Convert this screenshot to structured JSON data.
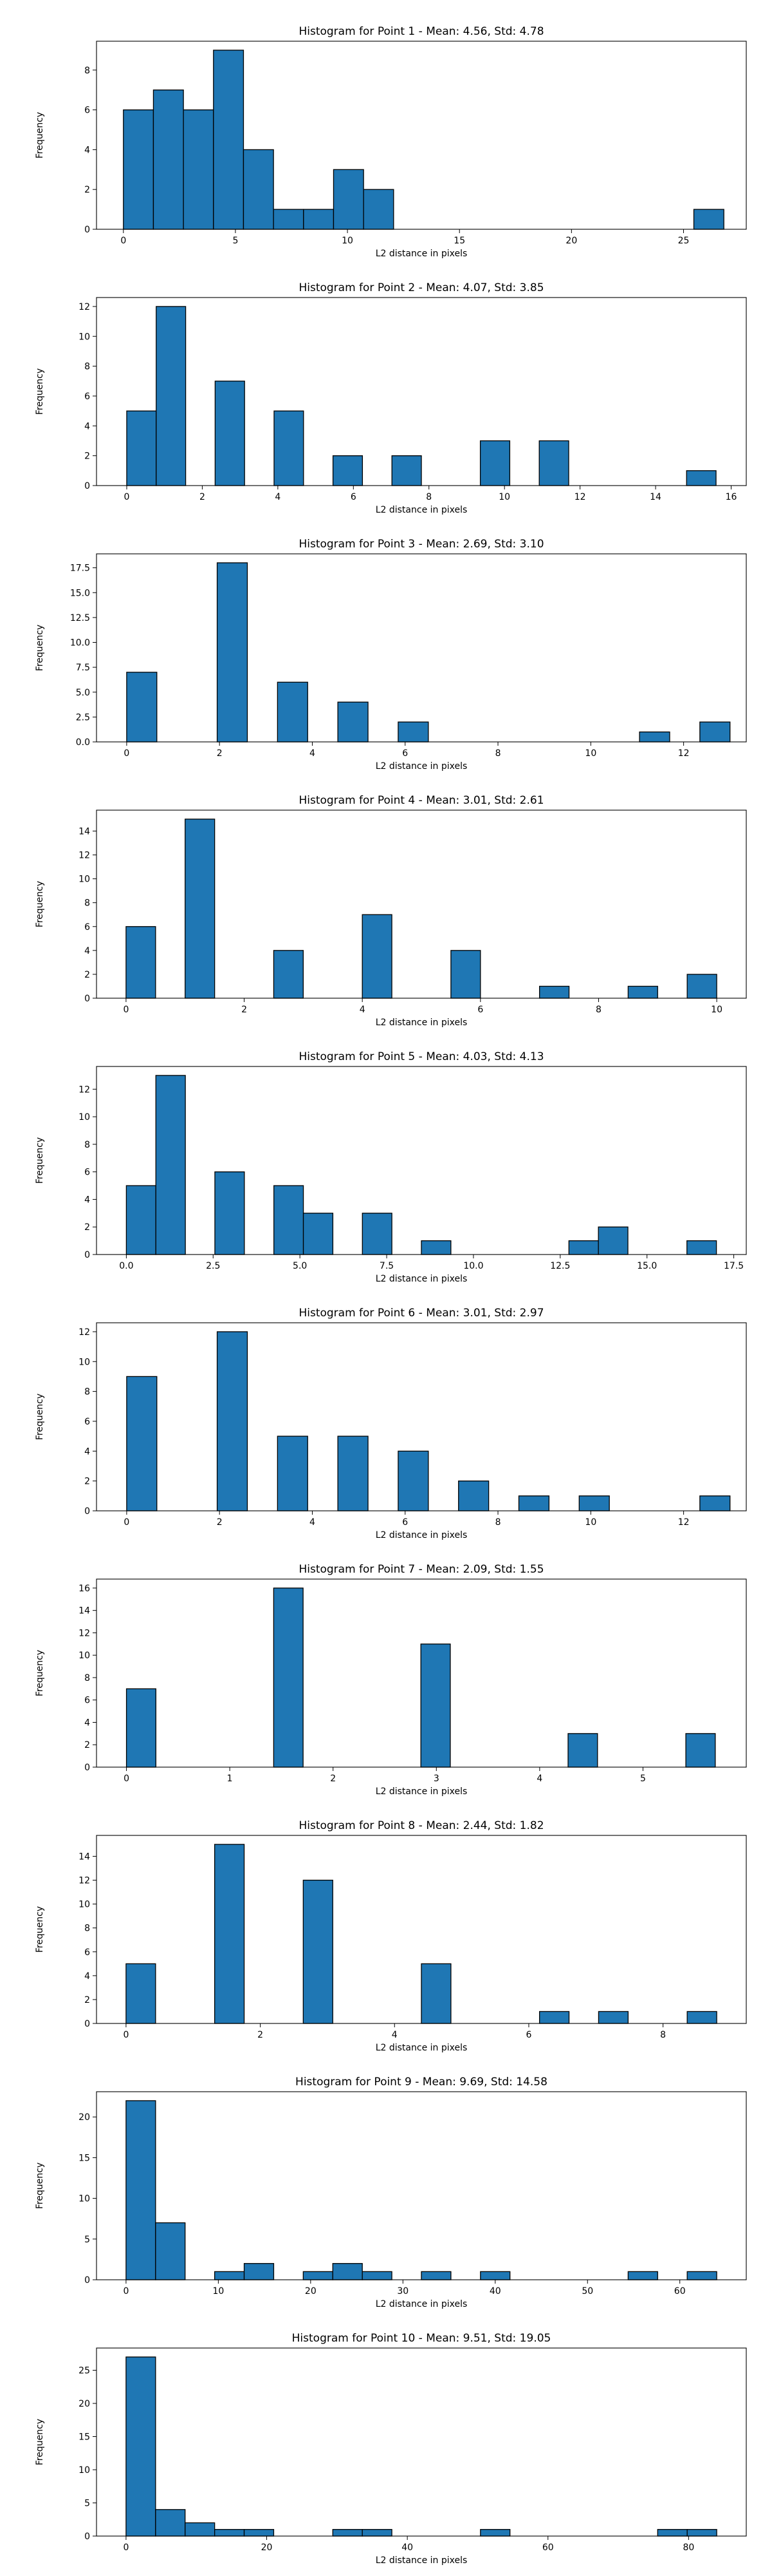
{
  "figure": {
    "bar_color": "#1f77b4",
    "edge_color": "#000000",
    "axes_color": "#000000"
  },
  "chart_data": [
    {
      "type": "bar",
      "title": "Histogram for Point 1 - Mean: 4.56, Std: 4.78",
      "xlabel": "L2 distance in pixels",
      "ylabel": "Frequency",
      "grid": false,
      "xlim": [
        -1.2,
        27.8
      ],
      "ylim": [
        0,
        9.45
      ],
      "xticks": [
        0,
        5,
        10,
        15,
        20,
        25
      ],
      "xtick_labels": [
        "0",
        "5",
        "10",
        "15",
        "20",
        "25"
      ],
      "yticks": [
        0,
        2,
        4,
        6,
        8
      ],
      "ytick_labels": [
        "0",
        "2",
        "4",
        "6",
        "8"
      ],
      "bin_edges": [
        0.0,
        1.34,
        2.68,
        4.02,
        5.36,
        6.7,
        8.04,
        9.38,
        10.72,
        12.06,
        13.4,
        14.74,
        16.08,
        17.42,
        18.76,
        20.1,
        21.44,
        22.78,
        24.12,
        25.46,
        26.8
      ],
      "counts": [
        6,
        7,
        6,
        9,
        4,
        1,
        1,
        3,
        2,
        0,
        0,
        0,
        0,
        0,
        0,
        0,
        0,
        0,
        0,
        1
      ]
    },
    {
      "type": "bar",
      "title": "Histogram for Point 2 - Mean: 4.07, Std: 3.85",
      "xlabel": "L2 distance in pixels",
      "ylabel": "Frequency",
      "grid": false,
      "xlim": [
        -0.8,
        16.4
      ],
      "ylim": [
        0,
        12.6
      ],
      "xticks": [
        0,
        2,
        4,
        6,
        8,
        10,
        12,
        14,
        16
      ],
      "xtick_labels": [
        "0",
        "2",
        "4",
        "6",
        "8",
        "10",
        "12",
        "14",
        "16"
      ],
      "yticks": [
        0,
        2,
        4,
        6,
        8,
        10,
        12
      ],
      "ytick_labels": [
        "0",
        "2",
        "4",
        "6",
        "8",
        "10",
        "12"
      ],
      "bin_edges": [
        0.0,
        0.78,
        1.56,
        2.34,
        3.12,
        3.9,
        4.68,
        5.46,
        6.24,
        7.02,
        7.8,
        8.58,
        9.36,
        10.14,
        10.92,
        11.7,
        12.48,
        13.26,
        14.04,
        14.82,
        15.6
      ],
      "counts": [
        5,
        12,
        0,
        7,
        0,
        5,
        0,
        2,
        0,
        2,
        0,
        0,
        3,
        0,
        3,
        0,
        0,
        0,
        0,
        1
      ]
    },
    {
      "type": "bar",
      "title": "Histogram for Point 3 - Mean: 2.69, Std: 3.10",
      "xlabel": "L2 distance in pixels",
      "ylabel": "Frequency",
      "grid": false,
      "xlim": [
        -0.65,
        13.35
      ],
      "ylim": [
        0,
        18.9
      ],
      "xticks": [
        0,
        2,
        4,
        6,
        8,
        10,
        12
      ],
      "xtick_labels": [
        "0",
        "2",
        "4",
        "6",
        "8",
        "10",
        "12"
      ],
      "yticks": [
        0,
        2.5,
        5,
        7.5,
        10,
        12.5,
        15,
        17.5
      ],
      "ytick_labels": [
        "0.0",
        "2.5",
        "5.0",
        "7.5",
        "10.0",
        "12.5",
        "15.0",
        "17.5"
      ],
      "bin_edges": [
        0.0,
        0.65,
        1.3,
        1.95,
        2.6,
        3.25,
        3.9,
        4.55,
        5.2,
        5.85,
        6.5,
        7.15,
        7.8,
        8.45,
        9.1,
        9.75,
        10.4,
        11.05,
        11.7,
        12.35,
        13.0
      ],
      "counts": [
        7,
        0,
        0,
        18,
        0,
        6,
        0,
        4,
        0,
        2,
        0,
        0,
        0,
        0,
        0,
        0,
        0,
        1,
        0,
        2
      ]
    },
    {
      "type": "bar",
      "title": "Histogram for Point 4 - Mean: 3.01, Std: 2.61",
      "xlabel": "L2 distance in pixels",
      "ylabel": "Frequency",
      "grid": false,
      "xlim": [
        -0.5,
        10.5
      ],
      "ylim": [
        0,
        15.75
      ],
      "xticks": [
        0,
        2,
        4,
        6,
        8,
        10
      ],
      "xtick_labels": [
        "0",
        "2",
        "4",
        "6",
        "8",
        "10"
      ],
      "yticks": [
        0,
        2,
        4,
        6,
        8,
        10,
        12,
        14
      ],
      "ytick_labels": [
        "0",
        "2",
        "4",
        "6",
        "8",
        "10",
        "12",
        "14"
      ],
      "bin_edges": [
        0.0,
        0.5,
        1.0,
        1.5,
        2.0,
        2.5,
        3.0,
        3.5,
        4.0,
        4.5,
        5.0,
        5.5,
        6.0,
        6.5,
        7.0,
        7.5,
        8.0,
        8.5,
        9.0,
        9.5,
        10.0
      ],
      "counts": [
        6,
        0,
        15,
        0,
        0,
        4,
        0,
        0,
        7,
        0,
        0,
        4,
        0,
        0,
        1,
        0,
        0,
        1,
        0,
        2
      ]
    },
    {
      "type": "bar",
      "title": "Histogram for Point 5 - Mean: 4.03, Std: 4.13",
      "xlabel": "L2 distance in pixels",
      "ylabel": "Frequency",
      "grid": false,
      "xlim": [
        -0.86,
        17.86
      ],
      "ylim": [
        0,
        13.65
      ],
      "xticks": [
        0,
        2.5,
        5,
        7.5,
        10,
        12.5,
        15,
        17.5
      ],
      "xtick_labels": [
        "0.0",
        "2.5",
        "5.0",
        "7.5",
        "10.0",
        "12.5",
        "15.0",
        "17.5"
      ],
      "yticks": [
        0,
        2,
        4,
        6,
        8,
        10,
        12
      ],
      "ytick_labels": [
        "0",
        "2",
        "4",
        "6",
        "8",
        "10",
        "12"
      ],
      "bin_edges": [
        0.0,
        0.85,
        1.7,
        2.55,
        3.4,
        4.25,
        5.1,
        5.95,
        6.8,
        7.65,
        8.5,
        9.35,
        10.2,
        11.05,
        11.9,
        12.75,
        13.6,
        14.45,
        15.3,
        16.15,
        17.0
      ],
      "counts": [
        5,
        13,
        0,
        6,
        0,
        5,
        3,
        0,
        3,
        0,
        1,
        0,
        0,
        0,
        0,
        1,
        2,
        0,
        0,
        1
      ]
    },
    {
      "type": "bar",
      "title": "Histogram for Point 6 - Mean: 3.01, Std: 2.97",
      "xlabel": "L2 distance in pixels",
      "ylabel": "Frequency",
      "grid": false,
      "xlim": [
        -0.65,
        13.35
      ],
      "ylim": [
        0,
        12.6
      ],
      "xticks": [
        0,
        2,
        4,
        6,
        8,
        10,
        12
      ],
      "xtick_labels": [
        "0",
        "2",
        "4",
        "6",
        "8",
        "10",
        "12"
      ],
      "yticks": [
        0,
        2,
        4,
        6,
        8,
        10,
        12
      ],
      "ytick_labels": [
        "0",
        "2",
        "4",
        "6",
        "8",
        "10",
        "12"
      ],
      "bin_edges": [
        0.0,
        0.65,
        1.3,
        1.95,
        2.6,
        3.25,
        3.9,
        4.55,
        5.2,
        5.85,
        6.5,
        7.15,
        7.8,
        8.45,
        9.1,
        9.75,
        10.4,
        11.05,
        11.7,
        12.35,
        13.0
      ],
      "counts": [
        9,
        0,
        0,
        12,
        0,
        5,
        0,
        5,
        0,
        4,
        0,
        2,
        0,
        1,
        0,
        1,
        0,
        0,
        0,
        1
      ]
    },
    {
      "type": "bar",
      "title": "Histogram for Point 7 - Mean: 2.09, Std: 1.55",
      "xlabel": "L2 distance in pixels",
      "ylabel": "Frequency",
      "grid": false,
      "xlim": [
        -0.29,
        6.0
      ],
      "ylim": [
        0,
        16.8
      ],
      "xticks": [
        0,
        1,
        2,
        3,
        4,
        5
      ],
      "xtick_labels": [
        "0",
        "1",
        "2",
        "3",
        "4",
        "5"
      ],
      "yticks": [
        0,
        2,
        4,
        6,
        8,
        10,
        12,
        14,
        16
      ],
      "ytick_labels": [
        "0",
        "2",
        "4",
        "6",
        "8",
        "10",
        "12",
        "14",
        "16"
      ],
      "bin_edges": [
        0.0,
        0.285,
        0.57,
        0.855,
        1.14,
        1.425,
        1.71,
        1.995,
        2.28,
        2.565,
        2.85,
        3.135,
        3.42,
        3.705,
        3.99,
        4.275,
        4.56,
        4.845,
        5.13,
        5.415,
        5.7
      ],
      "counts": [
        7,
        0,
        0,
        0,
        0,
        16,
        0,
        0,
        0,
        0,
        11,
        0,
        0,
        0,
        0,
        3,
        0,
        0,
        0,
        3
      ]
    },
    {
      "type": "bar",
      "title": "Histogram for Point 8 - Mean: 2.44, Std: 1.82",
      "xlabel": "L2 distance in pixels",
      "ylabel": "Frequency",
      "grid": false,
      "xlim": [
        -0.44,
        9.24
      ],
      "ylim": [
        0,
        15.75
      ],
      "xticks": [
        0,
        2,
        4,
        6,
        8
      ],
      "xtick_labels": [
        "0",
        "2",
        "4",
        "6",
        "8"
      ],
      "yticks": [
        0,
        2,
        4,
        6,
        8,
        10,
        12,
        14
      ],
      "ytick_labels": [
        "0",
        "2",
        "4",
        "6",
        "8",
        "10",
        "12",
        "14"
      ],
      "bin_edges": [
        0.0,
        0.44,
        0.88,
        1.32,
        1.76,
        2.2,
        2.64,
        3.08,
        3.52,
        3.96,
        4.4,
        4.84,
        5.28,
        5.72,
        6.16,
        6.6,
        7.04,
        7.48,
        7.92,
        8.36,
        8.8
      ],
      "counts": [
        5,
        0,
        0,
        15,
        0,
        0,
        12,
        0,
        0,
        0,
        5,
        0,
        0,
        0,
        1,
        0,
        1,
        0,
        0,
        1
      ]
    },
    {
      "type": "bar",
      "title": "Histogram for Point 9 - Mean: 9.69, Std: 14.58",
      "xlabel": "L2 distance in pixels",
      "ylabel": "Frequency",
      "grid": false,
      "xlim": [
        -3.2,
        67.2
      ],
      "ylim": [
        0,
        23.1
      ],
      "xticks": [
        0,
        10,
        20,
        30,
        40,
        50,
        60
      ],
      "xtick_labels": [
        "0",
        "10",
        "20",
        "30",
        "40",
        "50",
        "60"
      ],
      "yticks": [
        0,
        5,
        10,
        15,
        20
      ],
      "ytick_labels": [
        "0",
        "5",
        "10",
        "15",
        "20"
      ],
      "bin_edges": [
        0.0,
        3.2,
        6.4,
        9.6,
        12.8,
        16.0,
        19.2,
        22.4,
        25.6,
        28.8,
        32.0,
        35.2,
        38.4,
        41.6,
        44.8,
        48.0,
        51.2,
        54.4,
        57.6,
        60.8,
        64.0
      ],
      "counts": [
        22,
        7,
        0,
        1,
        2,
        0,
        1,
        2,
        1,
        0,
        1,
        0,
        1,
        0,
        0,
        0,
        0,
        1,
        0,
        1
      ]
    },
    {
      "type": "bar",
      "title": "Histogram for Point 10 - Mean: 9.51, Std: 19.05",
      "xlabel": "L2 distance in pixels",
      "ylabel": "Frequency",
      "grid": false,
      "xlim": [
        -4.2,
        88.2
      ],
      "ylim": [
        0,
        28.35
      ],
      "xticks": [
        0,
        20,
        40,
        60,
        80
      ],
      "xtick_labels": [
        "0",
        "20",
        "40",
        "60",
        "80"
      ],
      "yticks": [
        0,
        5,
        10,
        15,
        20,
        25
      ],
      "ytick_labels": [
        "0",
        "5",
        "10",
        "15",
        "20",
        "25"
      ],
      "bin_edges": [
        0.0,
        4.2,
        8.4,
        12.6,
        16.8,
        21.0,
        25.2,
        29.4,
        33.6,
        37.8,
        42.0,
        46.2,
        50.4,
        54.6,
        58.8,
        63.0,
        67.2,
        71.4,
        75.6,
        79.8,
        84.0
      ],
      "counts": [
        27,
        4,
        2,
        1,
        1,
        0,
        0,
        1,
        1,
        0,
        0,
        0,
        1,
        0,
        0,
        0,
        0,
        0,
        1,
        1
      ]
    }
  ]
}
